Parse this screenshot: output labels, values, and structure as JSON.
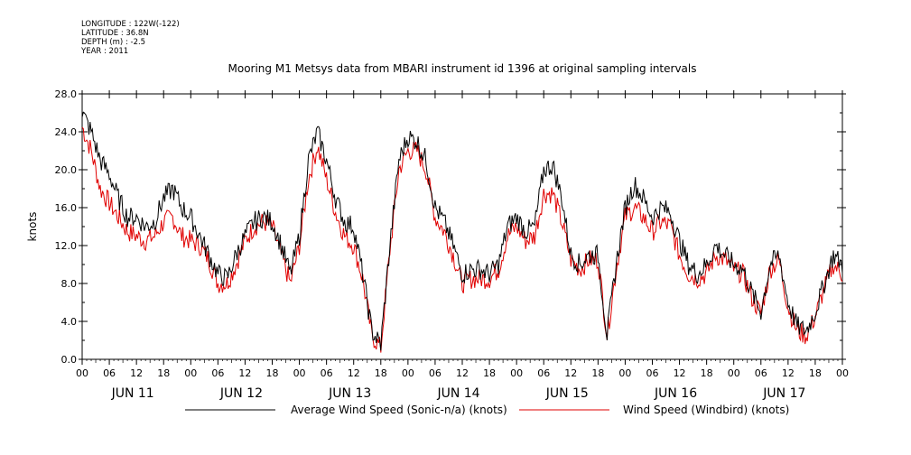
{
  "header": {
    "longitude": "LONGITUDE : 122W(-122)",
    "latitude": "LATITUDE : 36.8N",
    "depth": "DEPTH (m) : -2.5",
    "year": "YEAR : 2011"
  },
  "chart_data": {
    "type": "line",
    "title": "Mooring M1 Metsys data from MBARI instrument id 1396 at original sampling intervals",
    "ylabel": "knots",
    "xlabel": "",
    "ylim": [
      0,
      28
    ],
    "y_ticks": [
      "0.0",
      "4.0",
      "8.0",
      "12.0",
      "16.0",
      "20.0",
      "24.0",
      "28.0"
    ],
    "x_hour_ticks": [
      "00",
      "06",
      "12",
      "18",
      "00",
      "06",
      "12",
      "18",
      "00",
      "06",
      "12",
      "18",
      "00",
      "06",
      "12",
      "18",
      "00",
      "06",
      "12",
      "18",
      "00",
      "06",
      "12",
      "18",
      "00",
      "06",
      "12",
      "18",
      "00"
    ],
    "day_labels": [
      "JUN 11",
      "JUN 12",
      "JUN 13",
      "JUN 14",
      "JUN 15",
      "JUN 16",
      "JUN 17"
    ],
    "xlim_hours": [
      0,
      168
    ],
    "grid": false,
    "legend_position": "bottom",
    "series": [
      {
        "name": "Average Wind Speed (Sonic-n/a) (knots)",
        "color": "#000000",
        "x_hours": [
          0,
          2,
          4,
          6,
          8,
          10,
          12,
          14,
          16,
          18,
          20,
          22,
          24,
          26,
          28,
          30,
          32,
          34,
          36,
          38,
          40,
          42,
          44,
          46,
          48,
          50,
          52,
          54,
          56,
          58,
          60,
          62,
          64,
          66,
          68,
          70,
          72,
          74,
          76,
          78,
          80,
          82,
          84,
          86,
          88,
          90,
          92,
          94,
          96,
          98,
          100,
          102,
          104,
          106,
          108,
          110,
          112,
          114,
          116,
          118,
          120,
          122,
          124,
          126,
          128,
          130,
          132,
          134,
          136,
          138,
          140,
          142,
          144,
          146,
          148,
          150,
          152,
          154,
          156,
          158,
          160,
          162,
          164,
          166,
          168
        ],
        "values": [
          26,
          24,
          21,
          19.5,
          17,
          15,
          15,
          14,
          14.5,
          17,
          18,
          16,
          15,
          13,
          11,
          9,
          8.5,
          11,
          13,
          14.5,
          15,
          14.5,
          12,
          9,
          13,
          21,
          24,
          21,
          17,
          14.5,
          14,
          9,
          3,
          1.5,
          12,
          21,
          23.5,
          23,
          21,
          16,
          14.5,
          12,
          9,
          9.5,
          9.5,
          9,
          10,
          14,
          15,
          13.5,
          14,
          20,
          20.5,
          17,
          11,
          10,
          11,
          11,
          2.5,
          10,
          16,
          18.5,
          17,
          15,
          16,
          15.5,
          12.5,
          10,
          9,
          10,
          12,
          11,
          10,
          9.5,
          7,
          5,
          10,
          11,
          6,
          3.5,
          3,
          5,
          8,
          11,
          10
        ]
      },
      {
        "name": "Wind Speed (Windbird) (knots)",
        "color": "#e00000",
        "x_hours": [
          0,
          2,
          4,
          6,
          8,
          10,
          12,
          14,
          16,
          18,
          20,
          22,
          24,
          26,
          28,
          30,
          32,
          34,
          36,
          38,
          40,
          42,
          44,
          46,
          48,
          50,
          52,
          54,
          56,
          58,
          60,
          62,
          64,
          66,
          68,
          70,
          72,
          74,
          76,
          78,
          80,
          82,
          84,
          86,
          88,
          90,
          92,
          94,
          96,
          98,
          100,
          102,
          104,
          106,
          108,
          110,
          112,
          114,
          116,
          118,
          120,
          122,
          124,
          126,
          128,
          130,
          132,
          134,
          136,
          138,
          140,
          142,
          144,
          146,
          148,
          150,
          152,
          154,
          156,
          158,
          160,
          162,
          164,
          166,
          168
        ],
        "values": [
          24.5,
          22,
          18,
          16.5,
          15,
          13.5,
          13,
          12.5,
          13,
          14.5,
          15,
          13,
          12.5,
          12,
          10.5,
          8,
          8,
          10,
          12.5,
          14,
          14.5,
          14,
          11,
          8,
          12,
          19,
          22.5,
          19,
          15.5,
          13,
          12,
          8.5,
          2.5,
          1.2,
          11.5,
          20,
          22,
          22,
          20,
          15,
          13.5,
          11,
          8,
          8.5,
          8.5,
          8.5,
          9.5,
          13,
          14,
          12.5,
          13,
          17.5,
          17.5,
          14.5,
          10.5,
          9.5,
          10.5,
          10.5,
          2.5,
          9.5,
          15,
          16,
          15,
          13.5,
          14.5,
          14,
          11,
          9,
          8.5,
          9,
          11,
          10.5,
          9.5,
          9,
          6.5,
          4.8,
          9.5,
          10.5,
          5.5,
          3,
          2.5,
          4.5,
          7.5,
          10,
          9
        ]
      }
    ]
  }
}
